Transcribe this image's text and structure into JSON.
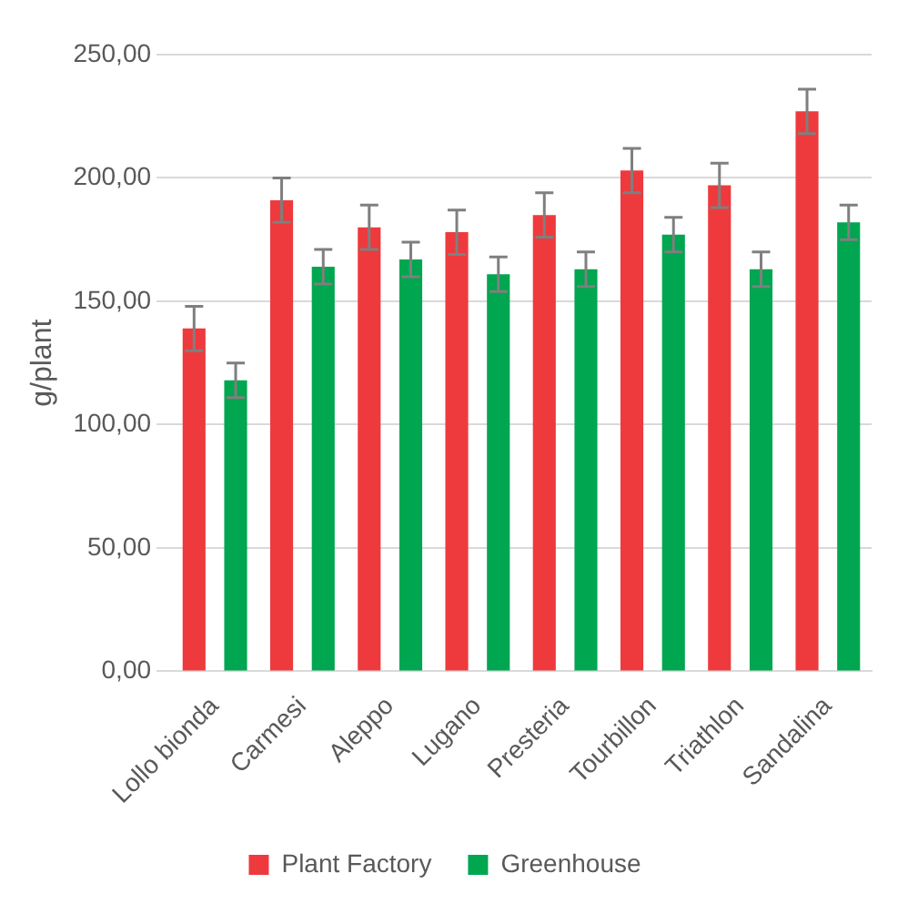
{
  "chart_data": {
    "type": "bar",
    "ylabel": "g/plant",
    "categories": [
      "Lollo bionda",
      "Carmesi",
      "Aleppo",
      "Lugano",
      "Presteria",
      "Tourbillon",
      "Triathlon",
      "Sandalina"
    ],
    "series": [
      {
        "name": "Plant Factory",
        "color": "#ee3a3d",
        "values": [
          139,
          191,
          180,
          178,
          185,
          203,
          197,
          227
        ],
        "errors": [
          9,
          9,
          9,
          9,
          9,
          9,
          9,
          9
        ]
      },
      {
        "name": "Greenhouse",
        "color": "#00a650",
        "values": [
          118,
          164,
          167,
          161,
          163,
          177,
          163,
          182
        ],
        "errors": [
          7,
          7,
          7,
          7,
          7,
          7,
          7,
          7
        ]
      }
    ],
    "ylim": [
      0,
      250
    ],
    "yticks": [
      {
        "value": 0,
        "label": "0,00"
      },
      {
        "value": 50,
        "label": "50,00"
      },
      {
        "value": 100,
        "label": "100,00"
      },
      {
        "value": 150,
        "label": "150,00"
      },
      {
        "value": 200,
        "label": "200,00"
      },
      {
        "value": 250,
        "label": "250,00"
      }
    ],
    "grid": "y",
    "legend": "bottom"
  }
}
